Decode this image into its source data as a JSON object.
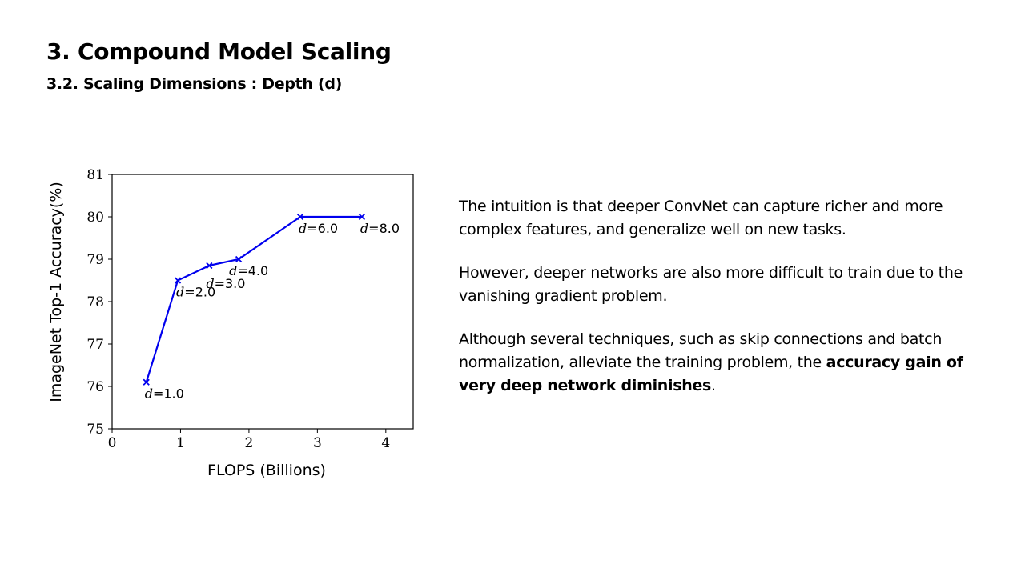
{
  "slide": {
    "title": "3. Compound Model Scaling",
    "subtitle": "3.2. Scaling Dimensions : Depth (d)"
  },
  "text": {
    "p1": "The intuition is that deeper ConvNet can capture richer and more complex features, and generalize well on new tasks.",
    "p2": "However, deeper networks are also more difficult to train due to the vanishing gradient problem.",
    "p3_start": "Although several techniques, such as skip connections and batch normalization, alleviate the training problem, the ",
    "p3_bold": "accuracy gain of very deep network diminishes",
    "p3_end": "."
  },
  "chart_data": {
    "type": "line",
    "title": "",
    "xlabel": "FLOPS (Billions)",
    "ylabel": "ImageNet Top-1 Accuracy(%)",
    "xlim": [
      0,
      4.4
    ],
    "ylim": [
      75,
      81
    ],
    "xticks": [
      0,
      1,
      2,
      3,
      4
    ],
    "yticks": [
      75,
      76,
      77,
      78,
      79,
      80,
      81
    ],
    "grid": false,
    "line_color": "#0000ee",
    "marker": "x",
    "series": [
      {
        "x": [
          0.5,
          0.96,
          1.42,
          1.85,
          2.75,
          3.65
        ],
        "y": [
          76.1,
          78.5,
          78.85,
          79.0,
          80.0,
          80.0
        ],
        "labels": [
          "d=1.0",
          "d=2.0",
          "d=3.0",
          "d=4.0",
          "d=6.0",
          "d=8.0"
        ]
      }
    ]
  }
}
